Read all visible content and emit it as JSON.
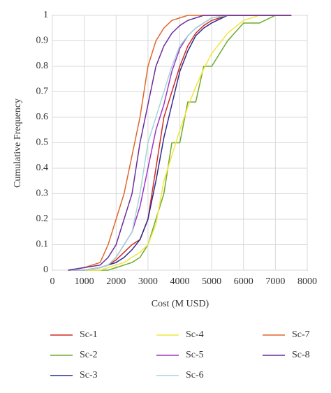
{
  "chart_data": {
    "type": "line",
    "x_label": "Cost (M USD)",
    "y_label": "Cumulative Frequency",
    "x": [
      500,
      1000,
      1500,
      1750,
      2000,
      2250,
      2500,
      2750,
      3000,
      3250,
      3500,
      3750,
      4000,
      4250,
      4500,
      4750,
      5000,
      5500,
      6000,
      6500,
      7000,
      7500
    ],
    "series": [
      {
        "name": "Sc-1",
        "color": "#d42b22",
        "values": [
          0,
          0,
          0.01,
          0.02,
          0.04,
          0.07,
          0.1,
          0.12,
          0.2,
          0.4,
          0.6,
          0.7,
          0.8,
          0.88,
          0.93,
          0.96,
          0.98,
          1,
          1,
          1,
          1,
          1
        ]
      },
      {
        "name": "Sc-2",
        "color": "#6aab2e",
        "values": [
          0,
          0,
          0,
          0,
          0.01,
          0.02,
          0.03,
          0.05,
          0.1,
          0.2,
          0.3,
          0.5,
          0.5,
          0.66,
          0.66,
          0.8,
          0.8,
          0.9,
          0.97,
          0.97,
          1,
          1
        ]
      },
      {
        "name": "Sc-3",
        "color": "#2c2c8e",
        "values": [
          0,
          0,
          0.01,
          0.02,
          0.03,
          0.05,
          0.08,
          0.12,
          0.2,
          0.35,
          0.52,
          0.65,
          0.78,
          0.86,
          0.92,
          0.95,
          0.97,
          1,
          1,
          1,
          1,
          1
        ]
      },
      {
        "name": "Sc-4",
        "color": "#f3e63e",
        "values": [
          0,
          0,
          0,
          0.01,
          0.02,
          0.03,
          0.05,
          0.07,
          0.1,
          0.18,
          0.35,
          0.45,
          0.55,
          0.64,
          0.72,
          0.79,
          0.85,
          0.93,
          0.98,
          1,
          1,
          1
        ]
      },
      {
        "name": "Sc-5",
        "color": "#a035c4",
        "values": [
          0,
          0,
          0.01,
          0.02,
          0.05,
          0.1,
          0.15,
          0.25,
          0.4,
          0.55,
          0.65,
          0.78,
          0.87,
          0.92,
          0.95,
          0.97,
          0.99,
          1,
          1,
          1,
          1,
          1
        ]
      },
      {
        "name": "Sc-6",
        "color": "#a3d6d6",
        "values": [
          0,
          0,
          0.01,
          0.02,
          0.05,
          0.1,
          0.15,
          0.3,
          0.5,
          0.6,
          0.7,
          0.8,
          0.88,
          0.92,
          0.95,
          0.97,
          0.99,
          1,
          1,
          1,
          1,
          1
        ]
      },
      {
        "name": "Sc-7",
        "color": "#e0672b",
        "values": [
          0,
          0.01,
          0.03,
          0.1,
          0.2,
          0.3,
          0.45,
          0.6,
          0.8,
          0.9,
          0.95,
          0.98,
          0.99,
          1,
          1,
          1,
          1,
          1,
          1,
          1,
          1,
          1
        ]
      },
      {
        "name": "Sc-8",
        "color": "#6b2c9c",
        "values": [
          0,
          0.01,
          0.02,
          0.05,
          0.1,
          0.2,
          0.3,
          0.5,
          0.65,
          0.8,
          0.88,
          0.93,
          0.96,
          0.98,
          0.99,
          1,
          1,
          1,
          1,
          1,
          1,
          1
        ]
      }
    ],
    "xlim": [
      0,
      8000
    ],
    "xticks": [
      0,
      1000,
      2000,
      3000,
      4000,
      5000,
      6000,
      7000,
      8000
    ],
    "ylim": [
      0,
      1
    ],
    "yticks": [
      0,
      0.1,
      0.2,
      0.3,
      0.4,
      0.5,
      0.6,
      0.7,
      0.8,
      0.9,
      1
    ],
    "grid": true
  }
}
